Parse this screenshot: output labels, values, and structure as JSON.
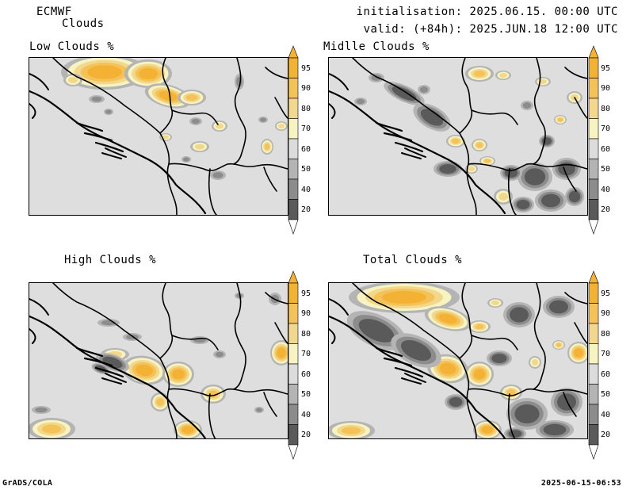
{
  "header": {
    "model": "ECMWF",
    "product": "Clouds",
    "init": "initialisation: 2025.06.15. 00:00 UTC",
    "valid": "valid: (+84h): 2025.JUN.18 12:00 UTC"
  },
  "panels": [
    {
      "id": "low",
      "title": "Low Clouds %"
    },
    {
      "id": "middle",
      "title": "Midlle Clouds %"
    },
    {
      "id": "high",
      "title": "High Clouds %"
    },
    {
      "id": "total",
      "title": "Total Clouds %"
    }
  ],
  "legend": {
    "labels": [
      "95",
      "90",
      "80",
      "70",
      "60",
      "50",
      "40",
      "20"
    ],
    "colors": [
      "#f3b233",
      "#f5c25a",
      "#f2d88c",
      "#f7f4c2",
      "#dcdcdc",
      "#b4b4b4",
      "#8c8c8c",
      "#5a5a5a"
    ]
  },
  "footer": {
    "software": "GrADS/COLA",
    "timestamp": "2025-06-15-06:53"
  }
}
